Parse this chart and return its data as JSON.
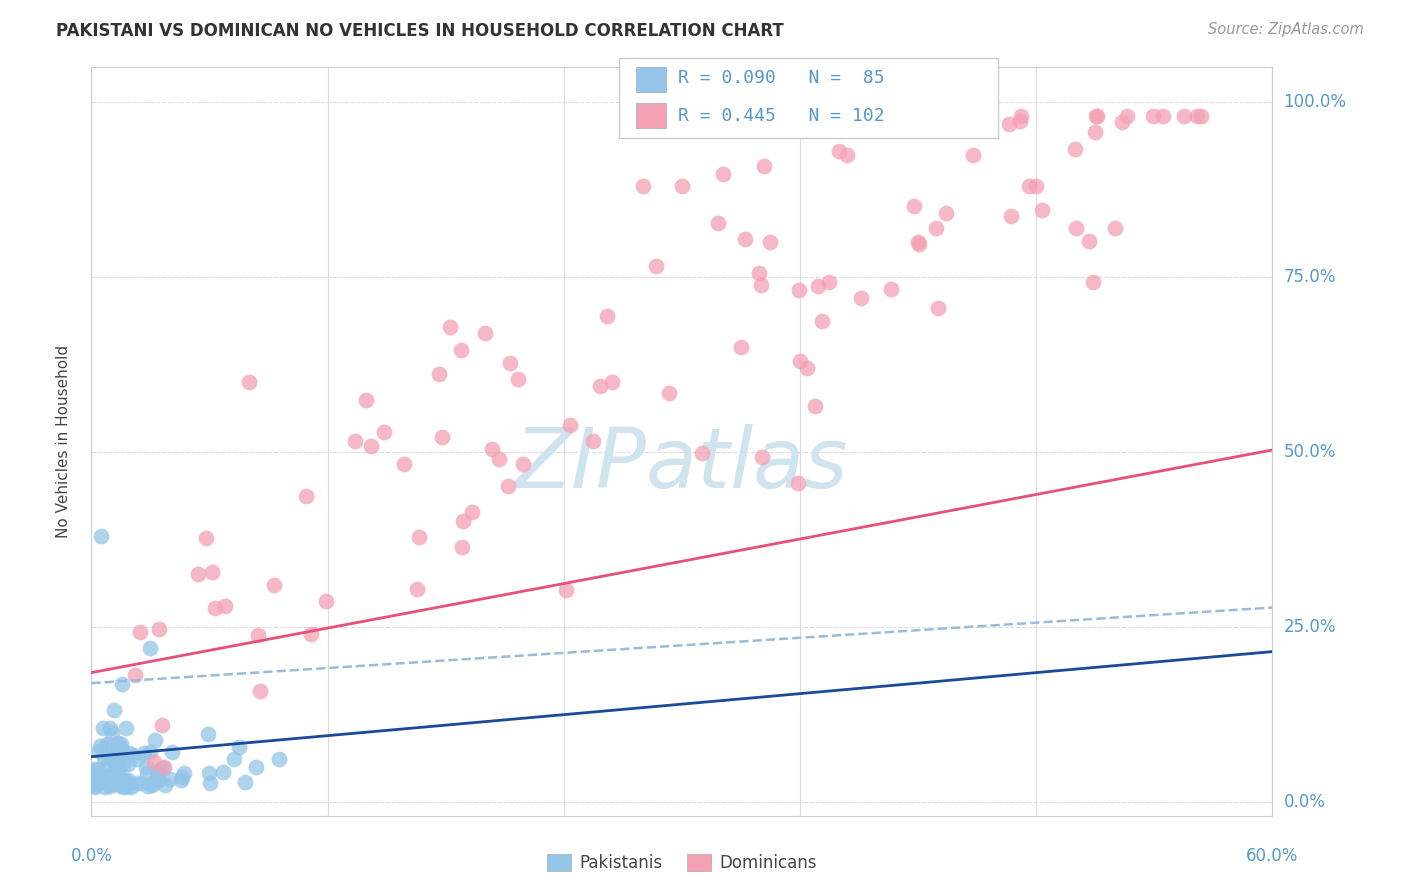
{
  "title": "PAKISTANI VS DOMINICAN NO VEHICLES IN HOUSEHOLD CORRELATION CHART",
  "source": "Source: ZipAtlas.com",
  "ylabel": "No Vehicles in Household",
  "ytick_labels": [
    "0.0%",
    "25.0%",
    "50.0%",
    "75.0%",
    "100.0%"
  ],
  "ytick_values": [
    0.0,
    0.25,
    0.5,
    0.75,
    1.0
  ],
  "xtick_labels": [
    "0.0%",
    "60.0%"
  ],
  "xtick_values": [
    0.0,
    0.6
  ],
  "xlim": [
    0.0,
    0.6
  ],
  "ylim": [
    -0.02,
    1.05
  ],
  "legend_line1": "R = 0.090   N =  85",
  "legend_line2": "R = 0.445   N = 102",
  "pakistani_color": "#92C5E8",
  "dominican_color": "#F4A0B5",
  "pakistani_line_color": "#1A4A9A",
  "dominican_line_color": "#E8507A",
  "dashed_line_color": "#99BBDD",
  "watermark_text": "ZIPatlas",
  "watermark_color": "#D0E4F0",
  "background_color": "#FFFFFF",
  "grid_color": "#DDDDDD",
  "text_color": "#444444",
  "axis_label_color": "#5599CC",
  "title_color": "#333333",
  "source_color": "#999999"
}
